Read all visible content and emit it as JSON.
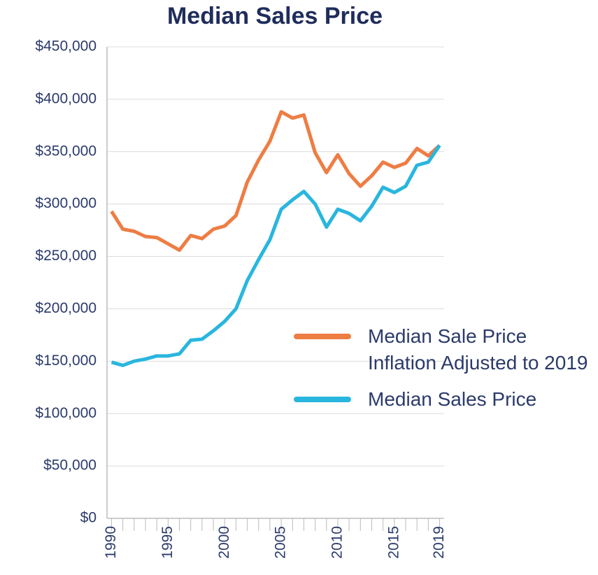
{
  "chart_data": {
    "type": "line",
    "title": "Median Sales Price",
    "x": [
      1990,
      1991,
      1992,
      1993,
      1994,
      1995,
      1996,
      1997,
      1998,
      1999,
      2000,
      2001,
      2002,
      2003,
      2004,
      2005,
      2006,
      2007,
      2008,
      2009,
      2010,
      2011,
      2012,
      2013,
      2014,
      2015,
      2016,
      2017,
      2018,
      2019
    ],
    "series": [
      {
        "name": "Median Sale Price Inflation Adjusted to 2019",
        "color": "#ee7d44",
        "values": [
          293000,
          276000,
          274000,
          269000,
          268000,
          262000,
          256000,
          270000,
          267000,
          276000,
          279000,
          289000,
          321000,
          342000,
          360000,
          388000,
          382000,
          385000,
          349000,
          330000,
          347000,
          329000,
          317000,
          327000,
          340000,
          335000,
          339000,
          353000,
          346000,
          356000
        ]
      },
      {
        "name": "Median Sales Price",
        "color": "#29b6de",
        "values": [
          149000,
          146000,
          150000,
          152000,
          155000,
          155000,
          157000,
          170000,
          171000,
          179000,
          188000,
          200000,
          227000,
          247000,
          266000,
          295000,
          304000,
          312000,
          300000,
          278000,
          295000,
          291000,
          284000,
          298000,
          316000,
          311000,
          317000,
          337000,
          340000,
          356000
        ]
      }
    ],
    "xlim": [
      1989.6,
      2019.4
    ],
    "xticks": [
      1990,
      1995,
      2000,
      2005,
      2010,
      2015,
      2019
    ],
    "ylim": [
      0,
      450000
    ],
    "yticks": [
      {
        "value": 0,
        "label": "$0"
      },
      {
        "value": 50000,
        "label": "$50,000"
      },
      {
        "value": 100000,
        "label": "$100,000"
      },
      {
        "value": 150000,
        "label": "$150,000"
      },
      {
        "value": 200000,
        "label": "$200,000"
      },
      {
        "value": 250000,
        "label": "$250,000"
      },
      {
        "value": 300000,
        "label": "$300,000"
      },
      {
        "value": 350000,
        "label": "$350,000"
      },
      {
        "value": 400000,
        "label": "$400,000"
      },
      {
        "value": 450000,
        "label": "$450,000"
      }
    ],
    "grid": true
  }
}
